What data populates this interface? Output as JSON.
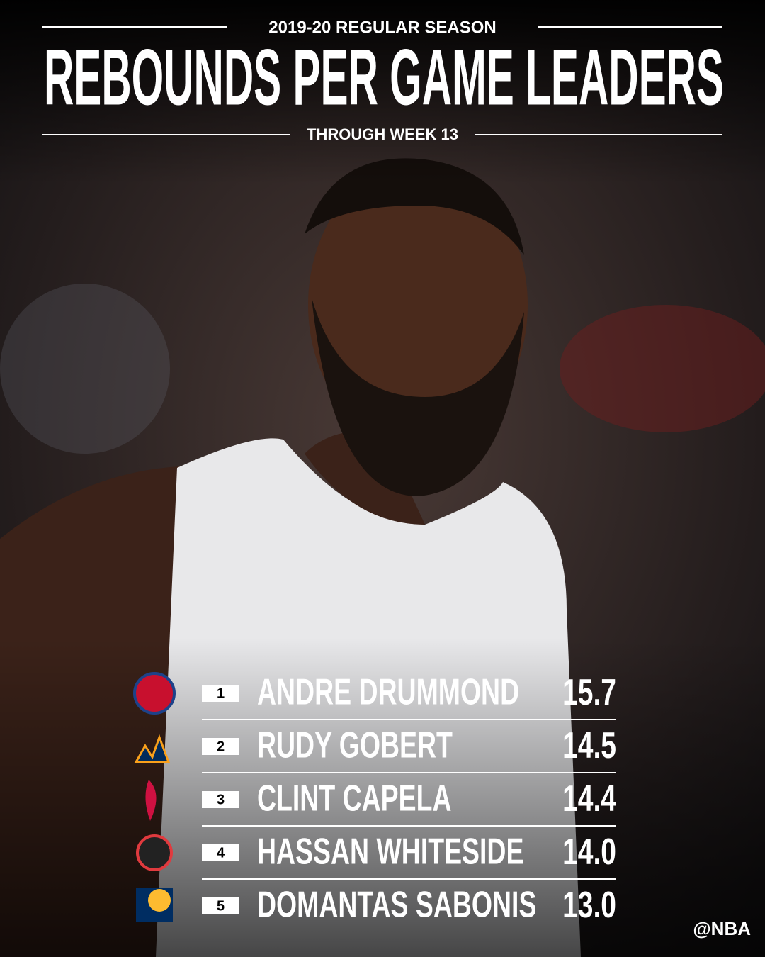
{
  "header": {
    "season": "2019-20 REGULAR SEASON",
    "title": "REBOUNDS PER GAME LEADERS",
    "subtitle": "THROUGH WEEK 13"
  },
  "table": {
    "rows": [
      [
        "1",
        "ANDRE DRUMMOND",
        "15.7"
      ],
      [
        "2",
        "RUDY GOBERT",
        "14.5"
      ],
      [
        "3",
        "CLINT CAPELA",
        "14.4"
      ],
      [
        "4",
        "HASSAN WHITESIDE",
        "14.0"
      ],
      [
        "5",
        "DOMANTAS SABONIS",
        "13.0"
      ]
    ]
  },
  "footer": {
    "handle": "@NBA"
  }
}
